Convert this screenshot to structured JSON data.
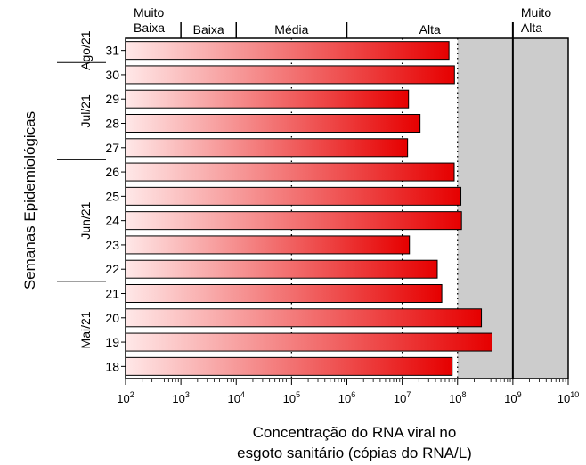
{
  "chart_data": {
    "type": "bar",
    "orientation": "horizontal",
    "x_scale": "log",
    "xlim": [
      100,
      10000000000
    ],
    "xticks": [
      100,
      1000,
      10000,
      100000,
      1000000,
      10000000,
      100000000,
      1000000000,
      10000000000
    ],
    "xtick_labels": [
      {
        "base": "10",
        "exp": "2"
      },
      {
        "base": "10",
        "exp": "3"
      },
      {
        "base": "10",
        "exp": "4"
      },
      {
        "base": "10",
        "exp": "5"
      },
      {
        "base": "10",
        "exp": "6"
      },
      {
        "base": "10",
        "exp": "7"
      },
      {
        "base": "10",
        "exp": "8"
      },
      {
        "base": "10",
        "exp": "9"
      },
      {
        "base": "10",
        "exp": "10"
      }
    ],
    "categories": [
      "31",
      "30",
      "29",
      "28",
      "27",
      "26",
      "25",
      "24",
      "23",
      "22",
      "21",
      "20",
      "19",
      "18"
    ],
    "values": [
      70000000,
      88000000,
      13000000,
      21000000,
      12500000,
      87000000,
      115000000,
      118000000,
      13500000,
      43000000,
      52000000,
      270000000,
      420000000,
      80000000
    ],
    "month_groups": [
      {
        "label": "Ago/21",
        "from": 0,
        "to": 0
      },
      {
        "label": "Jul/21",
        "from": 1,
        "to": 4
      },
      {
        "label": "Jun/21",
        "from": 5,
        "to": 9
      },
      {
        "label": "Mai/21",
        "from": 10,
        "to": 13
      }
    ],
    "levels": [
      {
        "lines": [
          "Muito",
          "Baixa"
        ],
        "from": 100,
        "to": 1000
      },
      {
        "lines": [
          "Baixa"
        ],
        "from": 1000,
        "to": 10000
      },
      {
        "lines": [
          "Média"
        ],
        "from": 10000,
        "to": 1000000
      },
      {
        "lines": [
          "Alta"
        ],
        "from": 1000000,
        "to": 1000000000
      },
      {
        "lines": [
          "Muito",
          "Alta"
        ],
        "from": 1000000000,
        "to": 10000000000
      }
    ],
    "shaded_from": 100000000,
    "solid_lines": [
      1000,
      10000,
      1000000,
      1000000000
    ],
    "dotted_lines": [
      100000,
      10000000,
      100000000
    ],
    "ylabel": "Semanas Epidemiológicas",
    "xlabel_lines": [
      "Concentração do RNA viral no",
      "esgoto sanitário (cópias do RNA/L)"
    ],
    "colors": {
      "bar_start": "#ffe8e8",
      "bar_end": "#e60000",
      "bar_stroke": "#000000",
      "shade": "#cccccc",
      "axis": "#000000"
    }
  }
}
